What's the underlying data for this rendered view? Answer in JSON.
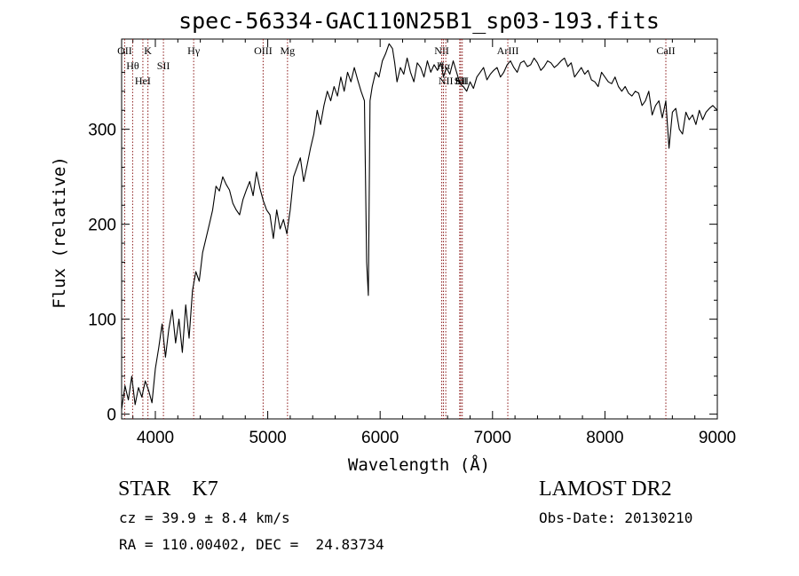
{
  "chart_data": {
    "type": "line",
    "title": "spec-56334-GAC110N25B1_sp03-193.fits",
    "xlabel": "Wavelength (Å)",
    "ylabel": "Flux (relative)",
    "xlim": [
      3700,
      9000
    ],
    "ylim": [
      -5,
      395
    ],
    "x_ticks": [
      4000,
      5000,
      6000,
      7000,
      8000,
      9000
    ],
    "y_ticks": [
      0,
      100,
      200,
      300
    ],
    "grid": false,
    "line_color": "#000000",
    "marker_color": "#8b1a1a",
    "series": [
      {
        "x": [
          3700,
          3730,
          3760,
          3790,
          3820,
          3850,
          3880,
          3910,
          3940,
          3970,
          4000,
          4030,
          4060,
          4090,
          4120,
          4150,
          4180,
          4210,
          4240,
          4270,
          4300,
          4330,
          4360,
          4390,
          4420,
          4450,
          4480,
          4510,
          4540,
          4570,
          4600,
          4630,
          4660,
          4690,
          4720,
          4750,
          4780,
          4810,
          4840,
          4870,
          4900,
          4930,
          4960,
          4990,
          5020,
          5050,
          5080,
          5110,
          5140,
          5170,
          5200,
          5230,
          5260,
          5290,
          5320,
          5350,
          5380,
          5410,
          5440,
          5470,
          5500,
          5530,
          5560,
          5590,
          5620,
          5650,
          5680,
          5710,
          5740,
          5770,
          5800,
          5830,
          5860,
          5880,
          5895,
          5910,
          5930,
          5960,
          5990,
          6020,
          6050,
          6080,
          6110,
          6130,
          6150,
          6180,
          6210,
          6240,
          6270,
          6300,
          6330,
          6360,
          6390,
          6420,
          6450,
          6480,
          6510,
          6540,
          6563,
          6590,
          6620,
          6650,
          6680,
          6710,
          6740,
          6770,
          6800,
          6830,
          6860,
          6890,
          6920,
          6950,
          6980,
          7010,
          7040,
          7070,
          7100,
          7130,
          7160,
          7190,
          7220,
          7250,
          7280,
          7310,
          7340,
          7370,
          7400,
          7430,
          7460,
          7490,
          7520,
          7550,
          7580,
          7610,
          7640,
          7670,
          7700,
          7730,
          7760,
          7790,
          7820,
          7850,
          7880,
          7910,
          7940,
          7970,
          8000,
          8030,
          8060,
          8090,
          8120,
          8150,
          8180,
          8210,
          8240,
          8270,
          8300,
          8330,
          8360,
          8390,
          8420,
          8450,
          8480,
          8510,
          8542,
          8570,
          8600,
          8630,
          8662,
          8690,
          8720,
          8750,
          8780,
          8810,
          8840,
          8870,
          8900,
          8930,
          8960,
          9000
        ],
        "y": [
          5,
          30,
          15,
          40,
          10,
          28,
          18,
          35,
          25,
          12,
          48,
          70,
          95,
          60,
          90,
          110,
          75,
          100,
          65,
          115,
          80,
          130,
          150,
          140,
          170,
          185,
          200,
          215,
          240,
          235,
          250,
          242,
          236,
          222,
          215,
          210,
          226,
          236,
          245,
          230,
          255,
          238,
          225,
          215,
          210,
          185,
          215,
          195,
          205,
          190,
          215,
          250,
          260,
          270,
          245,
          262,
          280,
          295,
          320,
          305,
          325,
          340,
          330,
          345,
          335,
          355,
          340,
          360,
          350,
          365,
          352,
          340,
          330,
          160,
          125,
          330,
          345,
          360,
          355,
          372,
          380,
          390,
          385,
          370,
          350,
          365,
          358,
          375,
          360,
          350,
          370,
          365,
          355,
          372,
          360,
          368,
          362,
          370,
          355,
          365,
          358,
          372,
          360,
          348,
          345,
          340,
          350,
          343,
          355,
          360,
          365,
          352,
          358,
          362,
          365,
          355,
          360,
          368,
          372,
          365,
          360,
          370,
          372,
          366,
          368,
          375,
          370,
          362,
          366,
          372,
          370,
          365,
          368,
          372,
          375,
          366,
          370,
          355,
          360,
          365,
          358,
          362,
          352,
          350,
          345,
          360,
          355,
          350,
          348,
          355,
          345,
          340,
          345,
          338,
          335,
          340,
          338,
          325,
          330,
          340,
          315,
          325,
          330,
          312,
          330,
          280,
          318,
          322,
          300,
          295,
          318,
          310,
          315,
          305,
          320,
          310,
          318,
          322,
          325,
          320
        ]
      }
    ],
    "lines": [
      {
        "label": "OII",
        "x": 3727
      },
      {
        "label": "Hθ",
        "x": 3798
      },
      {
        "label": "HeI",
        "x": 3889
      },
      {
        "label": "K",
        "x": 3934
      },
      {
        "label": "SII",
        "x": 4072
      },
      {
        "label": "Hγ",
        "x": 4341
      },
      {
        "label": "OIII",
        "x": 4959
      },
      {
        "label": "Mg",
        "x": 5176
      },
      {
        "label": "NII",
        "x": 6548
      },
      {
        "label": "Hα",
        "x": 6563
      },
      {
        "label": "NII",
        "x": 6584
      },
      {
        "label": "Li",
        "x": 6708
      },
      {
        "label": "SII",
        "x": 6717
      },
      {
        "label": "SII",
        "x": 6731
      },
      {
        "label": "ArIII",
        "x": 7136
      },
      {
        "label": "CaII",
        "x": 8542
      }
    ]
  },
  "info": {
    "class_line": "STAR    K7",
    "survey": "LAMOST DR2",
    "cz": "cz = 39.9 ± 8.4 km/s",
    "obs_date": "Obs-Date: 20130210",
    "coords": "RA = 110.00402, DEC =  24.83734"
  }
}
